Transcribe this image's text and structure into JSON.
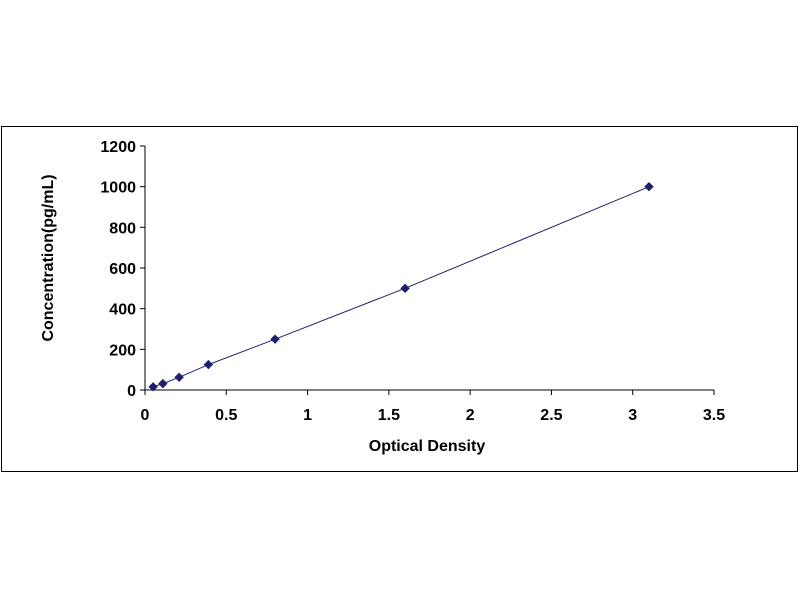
{
  "chart_data": {
    "type": "scatter",
    "title": "",
    "xlabel": "Optical Density",
    "ylabel": "Concentration(pg/mL)",
    "xlim": [
      0,
      3.5
    ],
    "ylim": [
      0,
      1200
    ],
    "xticks": [
      0,
      0.5,
      1,
      1.5,
      2,
      2.5,
      3,
      3.5
    ],
    "xtick_labels": [
      "0",
      "0.5",
      "1",
      "1.5",
      "2",
      "2.5",
      "3",
      "3.5"
    ],
    "yticks": [
      0,
      200,
      400,
      600,
      800,
      1000,
      1200
    ],
    "ytick_labels": [
      "0",
      "200",
      "400",
      "600",
      "800",
      "1000",
      "1200"
    ],
    "grid": false,
    "legend": "none",
    "marker_color": "#1F1F6B",
    "line_color": "#1F1F6B",
    "series": [
      {
        "x": [
          0.05,
          0.11,
          0.21,
          0.39,
          0.8,
          1.6,
          3.1
        ],
        "y": [
          15.6,
          31.3,
          62.5,
          125,
          250,
          500,
          1000
        ]
      }
    ]
  }
}
